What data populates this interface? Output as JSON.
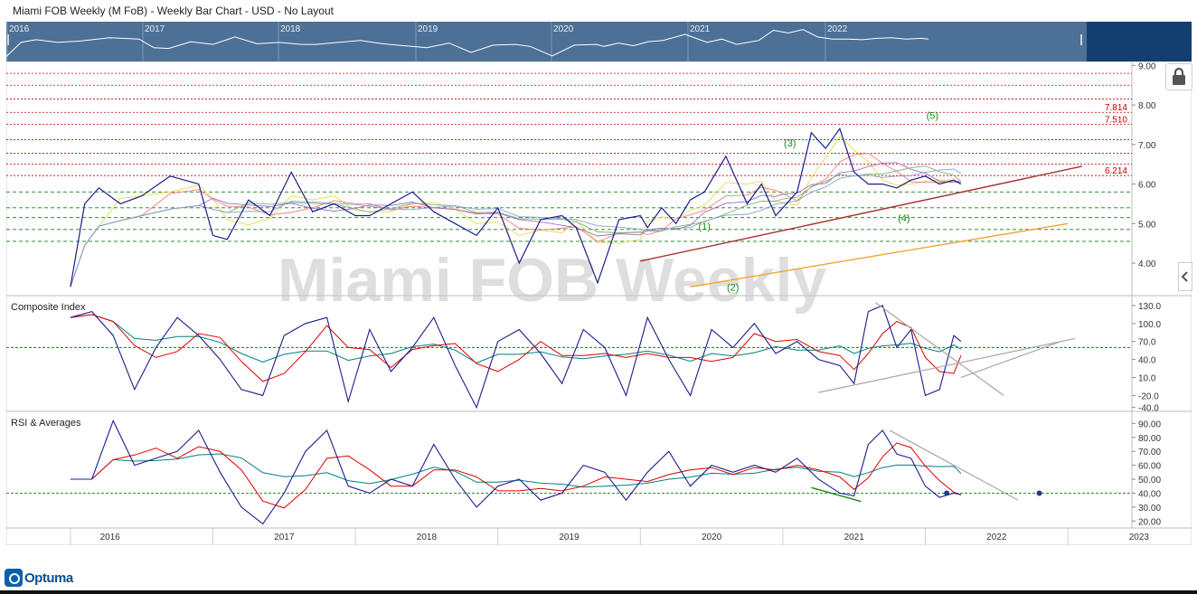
{
  "title": "Miami FOB Weekly (M FoB) - Weekly Bar Chart - USD - No Layout",
  "watermark": "Miami FOB Weekly",
  "brand": "Optuma",
  "overview_years": [
    "2016",
    "2017",
    "2018",
    "2019",
    "2020",
    "2021",
    "2022"
  ],
  "colors": {
    "overview_bg": "#4d7096",
    "overview_right": "#123f6e",
    "price": "#1c1c8c",
    "fast": "#e00000",
    "slow": "#008080",
    "trend_up": "#a83232",
    "trend_low": "#f2a32a",
    "dotted_red": "#c00000",
    "dotted_green": "#1a7a1a"
  },
  "chart_data": [
    {
      "name_hint": "price",
      "type": "line",
      "x": [
        2016.0,
        2016.1,
        2016.2,
        2016.35,
        2016.5,
        2016.7,
        2016.9,
        2017.0,
        2017.1,
        2017.25,
        2017.4,
        2017.55,
        2017.7,
        2017.85,
        2018.0,
        2018.1,
        2018.25,
        2018.4,
        2018.55,
        2018.7,
        2018.85,
        2019.0,
        2019.15,
        2019.3,
        2019.45,
        2019.55,
        2019.7,
        2019.85,
        2020.0,
        2020.05,
        2020.15,
        2020.25,
        2020.35,
        2020.45,
        2020.6,
        2020.75,
        2020.85,
        2020.95,
        2021.0,
        2021.1,
        2021.2,
        2021.3,
        2021.4,
        2021.5,
        2021.6,
        2021.7,
        2021.8,
        2021.9,
        2022.0,
        2022.1,
        2022.2,
        2022.25
      ],
      "y": [
        3.4,
        5.5,
        5.9,
        5.5,
        5.7,
        6.2,
        6.0,
        4.7,
        4.6,
        5.6,
        5.2,
        6.3,
        5.3,
        5.5,
        5.2,
        5.2,
        5.5,
        5.8,
        5.3,
        5.0,
        4.7,
        5.4,
        4.0,
        5.1,
        5.2,
        4.9,
        3.5,
        5.1,
        5.2,
        4.9,
        5.4,
        5.0,
        5.6,
        5.8,
        6.7,
        5.5,
        6.0,
        5.2,
        5.4,
        5.8,
        7.3,
        6.9,
        7.4,
        6.3,
        6.0,
        6.0,
        5.9,
        6.1,
        6.2,
        6.0,
        6.1,
        6.0
      ],
      "levels_red": [
        8.8,
        8.5,
        8.15,
        7.814,
        7.51,
        7.12,
        6.78,
        6.5,
        6.214
      ],
      "levels_green": [
        5.8,
        5.4,
        5.15,
        4.85,
        4.55
      ],
      "level_labels": [
        "7.814",
        "7.510",
        "6.214"
      ],
      "wave_labels": [
        "(1)",
        "(2)",
        "(3)",
        "(4)",
        "(5)"
      ],
      "yticks": [
        "9.00",
        "8.00",
        "7.00",
        "6.00",
        "5.00",
        "4.00"
      ],
      "ylim": [
        3.2,
        9.1
      ]
    },
    {
      "title": "Composite Index",
      "type": "line",
      "x": [
        2016.0,
        2016.15,
        2016.3,
        2016.45,
        2016.6,
        2016.75,
        2016.9,
        2017.05,
        2017.2,
        2017.35,
        2017.5,
        2017.65,
        2017.8,
        2017.95,
        2018.1,
        2018.25,
        2018.4,
        2018.55,
        2018.7,
        2018.85,
        2019.0,
        2019.15,
        2019.3,
        2019.45,
        2019.6,
        2019.75,
        2019.9,
        2020.05,
        2020.2,
        2020.35,
        2020.5,
        2020.65,
        2020.8,
        2020.95,
        2021.1,
        2021.25,
        2021.4,
        2021.5,
        2021.6,
        2021.7,
        2021.8,
        2021.9,
        2022.0,
        2022.1,
        2022.2,
        2022.25
      ],
      "y": [
        110,
        120,
        80,
        -10,
        60,
        110,
        80,
        40,
        -10,
        -20,
        80,
        100,
        110,
        -30,
        90,
        20,
        60,
        110,
        30,
        -40,
        70,
        90,
        50,
        0,
        90,
        60,
        -20,
        110,
        40,
        -20,
        90,
        60,
        100,
        50,
        70,
        40,
        30,
        0,
        120,
        130,
        60,
        90,
        -20,
        -10,
        80,
        70
      ],
      "yticks": [
        "130.0",
        "100.0",
        "70.0",
        "40.0",
        "10.0",
        "-20.0",
        "-40.0"
      ],
      "ylim": [
        -45,
        145
      ]
    },
    {
      "title": "RSI & Averages",
      "type": "line",
      "x": [
        2016.0,
        2016.15,
        2016.3,
        2016.45,
        2016.6,
        2016.75,
        2016.9,
        2017.05,
        2017.2,
        2017.35,
        2017.5,
        2017.65,
        2017.8,
        2017.95,
        2018.1,
        2018.25,
        2018.4,
        2018.55,
        2018.7,
        2018.85,
        2019.0,
        2019.15,
        2019.3,
        2019.45,
        2019.6,
        2019.75,
        2019.9,
        2020.05,
        2020.2,
        2020.35,
        2020.5,
        2020.65,
        2020.8,
        2020.95,
        2021.1,
        2021.25,
        2021.4,
        2021.5,
        2021.6,
        2021.7,
        2021.8,
        2021.9,
        2022.0,
        2022.1,
        2022.2,
        2022.25
      ],
      "y": [
        50,
        50,
        92,
        60,
        65,
        70,
        85,
        55,
        30,
        18,
        40,
        70,
        85,
        45,
        40,
        50,
        45,
        75,
        50,
        30,
        45,
        50,
        35,
        40,
        60,
        55,
        35,
        55,
        70,
        45,
        60,
        55,
        60,
        55,
        65,
        50,
        40,
        38,
        75,
        85,
        68,
        65,
        45,
        37,
        40,
        39
      ],
      "yticks": [
        "90.00",
        "80.00",
        "70.00",
        "60.00",
        "50.00",
        "40.00",
        "30.00",
        "20.00"
      ],
      "ylim": [
        15,
        98
      ]
    }
  ],
  "x_axis_years": [
    "2016",
    "2017",
    "2018",
    "2019",
    "2020",
    "2021",
    "2022",
    "2023"
  ]
}
